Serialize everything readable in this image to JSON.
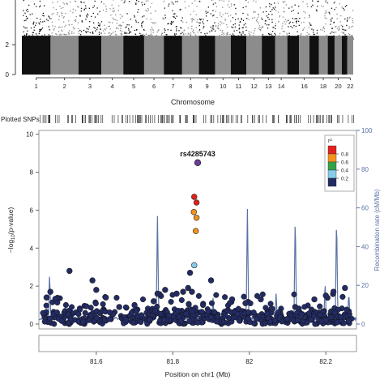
{
  "chart_data": [
    {
      "type": "scatter",
      "name": "manhattan",
      "xlabel": "Chromosome",
      "ylabel": "",
      "ylim": [
        0,
        5
      ],
      "yticks": [
        0,
        2
      ],
      "x_tick_labels": [
        "1",
        "2",
        "3",
        "4",
        "5",
        "6",
        "7",
        "8",
        "9",
        "10",
        "11",
        "12",
        "13",
        "14",
        "16",
        "18",
        "20",
        "22"
      ],
      "colors": {
        "odd": "#111111",
        "even": "#8c8c8c"
      }
    },
    {
      "type": "scatter",
      "name": "regional-association",
      "strip_label": "Plotted SNPs",
      "title": "",
      "xlabel": "Position on chr1 (Mb)",
      "ylabel": "-log10(p-value)",
      "ylabel_parts": {
        "prefix": "−log",
        "sub": "10",
        "suffix": "(p-value)"
      },
      "y2label": "Recombination rate (cM/Mb)",
      "xlim": [
        81.45,
        82.28
      ],
      "ylim": [
        0,
        10.2
      ],
      "y2lim": [
        0,
        100
      ],
      "xticks": [
        "81.6",
        "81.8",
        "82",
        "82.2"
      ],
      "yticks": [
        "0",
        "2",
        "4",
        "6",
        "8",
        "10"
      ],
      "y2ticks": [
        "0",
        "20",
        "40",
        "60",
        "80",
        "100"
      ],
      "lead_snp": {
        "label": "rs4285743",
        "x": 81.865,
        "y": 8.5,
        "color": "#6a3d9a"
      },
      "legend": {
        "title": "r²",
        "placement": "top-right",
        "ticks": [
          "0.8",
          "0.6",
          "0.4",
          "0.2"
        ],
        "colors": [
          "#e3211c",
          "#f2931c",
          "#34a34a",
          "#87cdea",
          "#232b63"
        ]
      },
      "points": [
        {
          "x": 81.856,
          "y": 6.7,
          "color": "#e3211c"
        },
        {
          "x": 81.862,
          "y": 6.4,
          "color": "#e3211c"
        },
        {
          "x": 81.855,
          "y": 5.9,
          "color": "#f2931c"
        },
        {
          "x": 81.862,
          "y": 5.6,
          "color": "#f2931c"
        },
        {
          "x": 81.86,
          "y": 4.9,
          "color": "#f2931c"
        },
        {
          "x": 81.856,
          "y": 3.1,
          "color": "#87cdea"
        },
        {
          "x": 81.53,
          "y": 2.8,
          "color": "#232b63"
        },
        {
          "x": 81.59,
          "y": 2.3,
          "color": "#232b63"
        },
        {
          "x": 81.845,
          "y": 2.7,
          "color": "#232b63"
        },
        {
          "x": 81.85,
          "y": 1.7,
          "color": "#232b63"
        },
        {
          "x": 81.827,
          "y": 1.7,
          "color": "#232b63"
        },
        {
          "x": 81.84,
          "y": 1.9,
          "color": "#232b63"
        },
        {
          "x": 81.81,
          "y": 1.6,
          "color": "#232b63"
        },
        {
          "x": 81.9,
          "y": 2.3,
          "color": "#232b63"
        },
        {
          "x": 82.25,
          "y": 1.9,
          "color": "#232b63"
        },
        {
          "x": 82.22,
          "y": 1.7,
          "color": "#232b63"
        },
        {
          "x": 81.48,
          "y": 1.7,
          "color": "#232b63"
        },
        {
          "x": 81.47,
          "y": 1.4,
          "color": "#232b63"
        },
        {
          "x": 81.6,
          "y": 1.8,
          "color": "#232b63"
        },
        {
          "x": 81.625,
          "y": 1.4,
          "color": "#232b63"
        },
        {
          "x": 81.76,
          "y": 1.6,
          "color": "#232b63"
        },
        {
          "x": 81.78,
          "y": 1.8,
          "color": "#232b63"
        },
        {
          "x": 81.955,
          "y": 1.3,
          "color": "#232b63"
        },
        {
          "x": 81.99,
          "y": 1.1,
          "color": "#232b63"
        },
        {
          "x": 82.03,
          "y": 1.3,
          "color": "#232b63"
        },
        {
          "x": 82.06,
          "y": 0.8,
          "color": "#232b63"
        },
        {
          "x": 82.12,
          "y": 0.9,
          "color": "#232b63"
        },
        {
          "x": 82.17,
          "y": 1.3,
          "color": "#232b63"
        },
        {
          "x": 82.2,
          "y": 1.5,
          "color": "#232b63"
        },
        {
          "x": 81.7,
          "y": 1.0,
          "color": "#232b63"
        },
        {
          "x": 81.66,
          "y": 0.9,
          "color": "#232b63"
        },
        {
          "x": 81.75,
          "y": 1.2,
          "color": "#232b63"
        }
      ],
      "background_points": {
        "count": 520,
        "seed": 7,
        "color": "#232b63",
        "y_distribution": "mostly 0-1, sparse up to 1.6",
        "clusters": [
          {
            "x_from": 81.46,
            "x_to": 81.62,
            "weight": 1.0
          },
          {
            "x_from": 81.62,
            "x_to": 81.74,
            "weight": 0.8
          },
          {
            "x_from": 81.74,
            "x_to": 81.96,
            "weight": 1.3
          },
          {
            "x_from": 81.96,
            "x_to": 82.27,
            "weight": 1.1
          }
        ]
      },
      "recombination": {
        "color": "#5a73a7",
        "peaks": [
          {
            "x": 81.478,
            "rate": 27
          },
          {
            "x": 81.76,
            "rate": 58
          },
          {
            "x": 81.905,
            "rate": 14
          },
          {
            "x": 81.995,
            "rate": 60
          },
          {
            "x": 82.07,
            "rate": 17
          },
          {
            "x": 82.12,
            "rate": 58
          },
          {
            "x": 82.198,
            "rate": 22
          },
          {
            "x": 82.228,
            "rate": 58
          },
          {
            "x": 82.26,
            "rate": 17
          }
        ]
      }
    }
  ]
}
